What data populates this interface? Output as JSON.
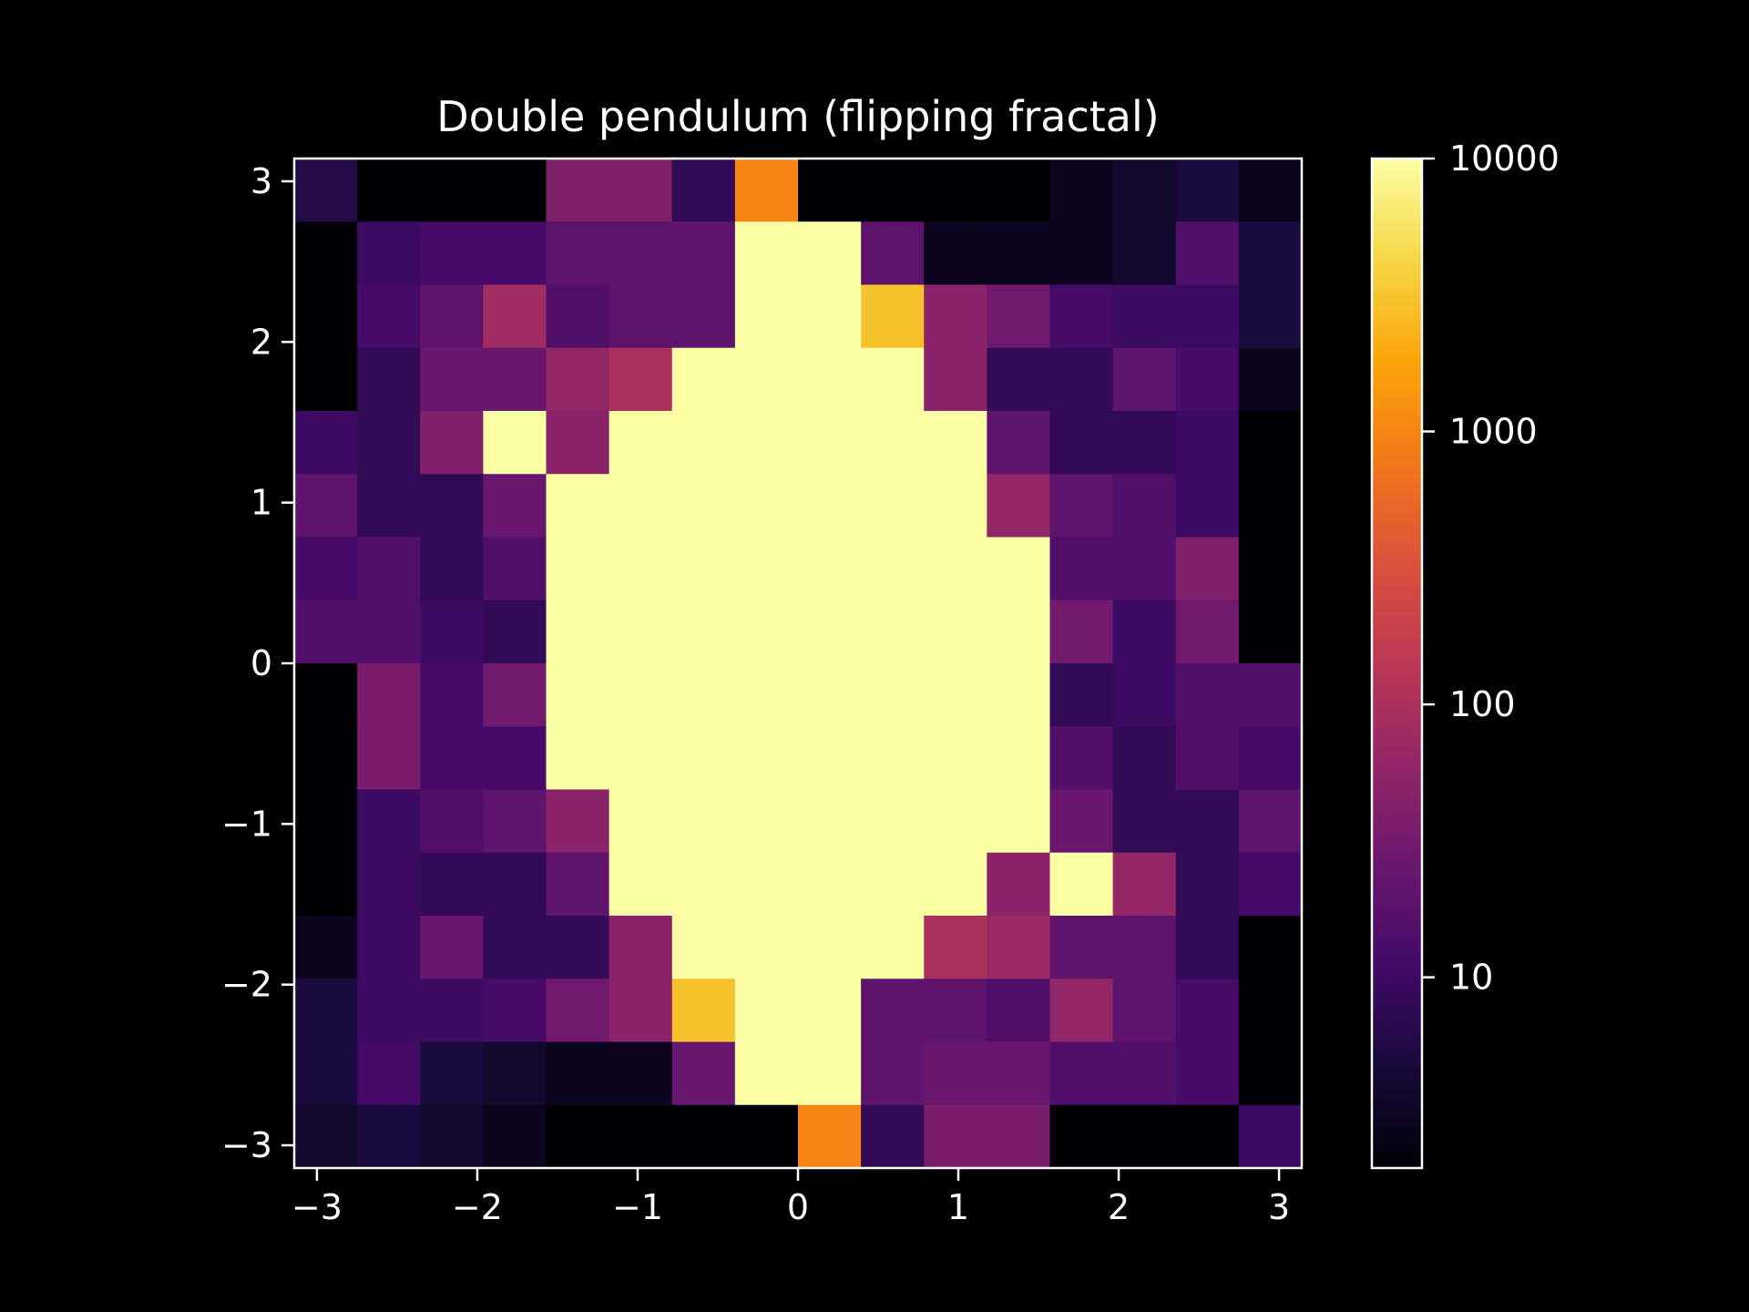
{
  "chart_data": {
    "type": "heatmap",
    "title": "Double pendulum (flipping fractal)",
    "xlabel": "",
    "ylabel": "",
    "xlim": [
      -3.1416,
      3.1416
    ],
    "ylim": [
      -3.1416,
      3.1416
    ],
    "x_ticks": [
      {
        "value": -3,
        "label": "−3"
      },
      {
        "value": -2,
        "label": "−2"
      },
      {
        "value": -1,
        "label": "−1"
      },
      {
        "value": 0,
        "label": "0"
      },
      {
        "value": 1,
        "label": "1"
      },
      {
        "value": 2,
        "label": "2"
      },
      {
        "value": 3,
        "label": "3"
      }
    ],
    "y_ticks": [
      {
        "value": 3,
        "label": "3"
      },
      {
        "value": 2,
        "label": "2"
      },
      {
        "value": 1,
        "label": "1"
      },
      {
        "value": 0,
        "label": "0"
      },
      {
        "value": -1,
        "label": "−1"
      },
      {
        "value": -2,
        "label": "−2"
      },
      {
        "value": -3,
        "label": "−3"
      }
    ],
    "grid": false,
    "colormap": "inferno",
    "color_scale": "log",
    "colorbar": {
      "vmin": 2,
      "vmax": 10000,
      "ticks": [
        {
          "value": 10,
          "label": "10"
        },
        {
          "value": 100,
          "label": "100"
        },
        {
          "value": 1000,
          "label": "1000"
        },
        {
          "value": 10000,
          "label": "10000"
        }
      ]
    },
    "grid_size": [
      16,
      16
    ],
    "values_rows_top_to_bottom": [
      [
        6,
        2,
        2,
        2,
        40,
        40,
        8,
        1000,
        2,
        2,
        2,
        2,
        3,
        4,
        5,
        3
      ],
      [
        2,
        10,
        12,
        12,
        20,
        20,
        20,
        10000,
        10000,
        20,
        3,
        3,
        3,
        4,
        15,
        5
      ],
      [
        2,
        12,
        20,
        80,
        15,
        20,
        20,
        10000,
        10000,
        3000,
        50,
        30,
        12,
        10,
        10,
        5
      ],
      [
        2,
        8,
        25,
        25,
        60,
        100,
        10000,
        10000,
        10000,
        10000,
        50,
        8,
        8,
        20,
        12,
        3
      ],
      [
        10,
        8,
        40,
        10000,
        50,
        10000,
        10000,
        10000,
        10000,
        10000,
        10000,
        20,
        8,
        8,
        10,
        2
      ],
      [
        20,
        8,
        8,
        25,
        10000,
        10000,
        10000,
        10000,
        10000,
        10000,
        10000,
        60,
        20,
        15,
        10,
        2
      ],
      [
        12,
        15,
        8,
        15,
        10000,
        10000,
        10000,
        10000,
        10000,
        10000,
        10000,
        10000,
        15,
        15,
        40,
        2
      ],
      [
        15,
        15,
        10,
        8,
        10000,
        10000,
        10000,
        10000,
        10000,
        10000,
        10000,
        10000,
        30,
        10,
        30,
        2
      ],
      [
        2,
        35,
        12,
        30,
        10000,
        10000,
        10000,
        10000,
        10000,
        10000,
        10000,
        10000,
        8,
        10,
        15,
        15
      ],
      [
        2,
        35,
        12,
        12,
        10000,
        10000,
        10000,
        10000,
        10000,
        10000,
        10000,
        10000,
        15,
        8,
        15,
        12
      ],
      [
        2,
        10,
        15,
        20,
        50,
        10000,
        10000,
        10000,
        10000,
        10000,
        10000,
        10000,
        25,
        8,
        8,
        20
      ],
      [
        2,
        10,
        8,
        8,
        20,
        10000,
        10000,
        10000,
        10000,
        10000,
        10000,
        50,
        10000,
        60,
        8,
        12
      ],
      [
        3,
        10,
        25,
        8,
        8,
        50,
        10000,
        10000,
        10000,
        10000,
        100,
        70,
        20,
        20,
        8,
        2
      ],
      [
        5,
        10,
        10,
        12,
        30,
        50,
        3000,
        10000,
        10000,
        20,
        20,
        15,
        60,
        20,
        12,
        2
      ],
      [
        5,
        12,
        5,
        4,
        3,
        3,
        25,
        10000,
        10000,
        20,
        25,
        25,
        15,
        15,
        12,
        2
      ],
      [
        4,
        5,
        4,
        3,
        2,
        2,
        2,
        2,
        1000,
        8,
        35,
        35,
        2,
        2,
        2,
        10
      ]
    ]
  }
}
